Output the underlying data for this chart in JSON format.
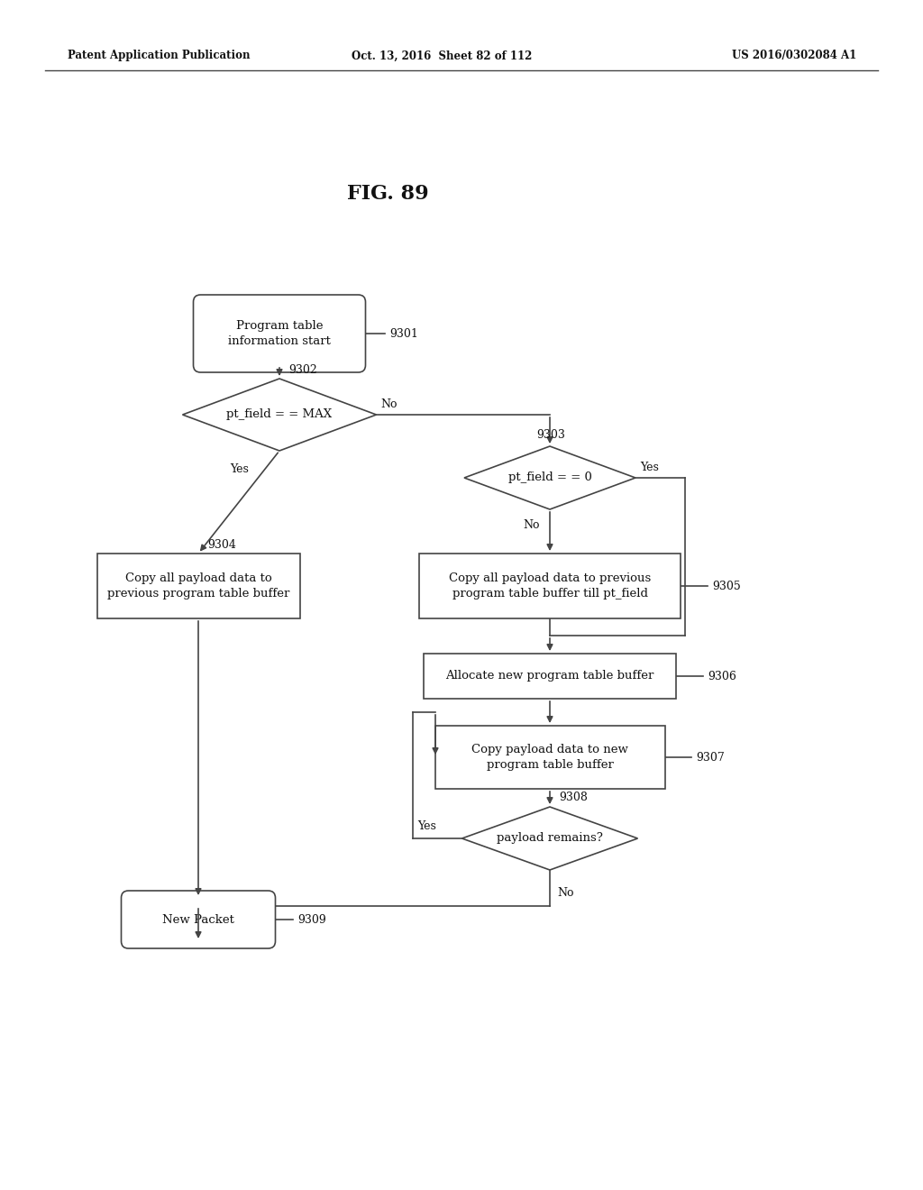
{
  "title_fig": "FIG. 89",
  "header_left": "Patent Application Publication",
  "header_mid": "Oct. 13, 2016  Sheet 82 of 112",
  "header_right": "US 2016/0302084 A1",
  "background_color": "#ffffff",
  "line_color": "#444444",
  "nodes": {
    "9301": {
      "label": "Program table\ninformation start",
      "ref": "9301"
    },
    "9302": {
      "label": "pt_field = = MAX",
      "ref": "9302"
    },
    "9303": {
      "label": "pt_field = = 0",
      "ref": "9303"
    },
    "9304": {
      "label": "Copy all payload data to\nprevious program table buffer",
      "ref": "9304"
    },
    "9305": {
      "label": "Copy all payload data to previous\nprogram table buffer till pt_field",
      "ref": "9305"
    },
    "9306": {
      "label": "Allocate new program table buffer",
      "ref": "9306"
    },
    "9307": {
      "label": "Copy payload data to new\nprogram table buffer",
      "ref": "9307"
    },
    "9308": {
      "label": "payload remains?",
      "ref": "9308"
    },
    "9309": {
      "label": "New Packet",
      "ref": "9309"
    }
  }
}
